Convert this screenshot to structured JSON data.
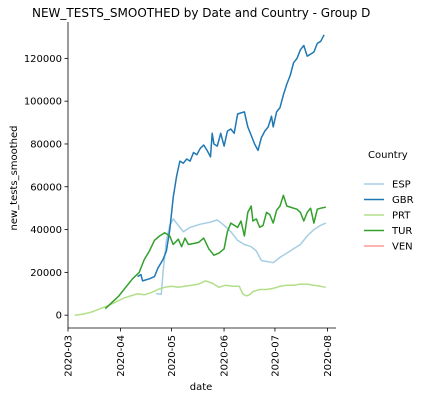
{
  "chart_data": {
    "type": "line",
    "title": "NEW_TESTS_SMOOTHED by Date and Country - Group D",
    "xlabel": "date",
    "ylabel": "new_tests_smoothed",
    "xlim": [
      "2020-03-01",
      "2020-08-06"
    ],
    "ylim": [
      -6000,
      137000
    ],
    "x_ticks": [
      "2020-03",
      "2020-04",
      "2020-05",
      "2020-06",
      "2020-07",
      "2020-08"
    ],
    "y_ticks": [
      0,
      20000,
      40000,
      60000,
      80000,
      100000,
      120000
    ],
    "y_tick_labels": [
      "0",
      "20000",
      "40000",
      "60000",
      "80000",
      "100000",
      "120000"
    ],
    "grid": false,
    "legend_title": "Country",
    "legend_position": "right",
    "series": [
      {
        "name": "ESP",
        "color": "#a6cee3",
        "points": [
          [
            "2020-04-22",
            10000
          ],
          [
            "2020-04-25",
            9800
          ],
          [
            "2020-04-26",
            20000
          ],
          [
            "2020-04-28",
            35000
          ],
          [
            "2020-04-30",
            42000
          ],
          [
            "2020-05-02",
            45000
          ],
          [
            "2020-05-06",
            41000
          ],
          [
            "2020-05-08",
            39000
          ],
          [
            "2020-05-12",
            41000
          ],
          [
            "2020-05-18",
            42500
          ],
          [
            "2020-05-24",
            43500
          ],
          [
            "2020-05-28",
            44500
          ],
          [
            "2020-06-01",
            42000
          ],
          [
            "2020-06-05",
            39000
          ],
          [
            "2020-06-09",
            35000
          ],
          [
            "2020-06-13",
            33000
          ],
          [
            "2020-06-17",
            32000
          ],
          [
            "2020-06-20",
            30000
          ],
          [
            "2020-06-23",
            25500
          ],
          [
            "2020-06-27",
            25000
          ],
          [
            "2020-06-30",
            24500
          ],
          [
            "2020-07-04",
            27000
          ],
          [
            "2020-07-08",
            29000
          ],
          [
            "2020-07-12",
            31000
          ],
          [
            "2020-07-16",
            33000
          ],
          [
            "2020-07-20",
            37000
          ],
          [
            "2020-07-24",
            40000
          ],
          [
            "2020-07-28",
            42000
          ],
          [
            "2020-07-31",
            43000
          ]
        ]
      },
      {
        "name": "GBR",
        "color": "#1f78b4",
        "points": [
          [
            "2020-04-11",
            18000
          ],
          [
            "2020-04-13",
            19000
          ],
          [
            "2020-04-14",
            16000
          ],
          [
            "2020-04-18",
            17000
          ],
          [
            "2020-04-21",
            18000
          ],
          [
            "2020-04-23",
            22000
          ],
          [
            "2020-04-26",
            26000
          ],
          [
            "2020-04-28",
            30000
          ],
          [
            "2020-04-30",
            40000
          ],
          [
            "2020-05-02",
            55000
          ],
          [
            "2020-05-04",
            65000
          ],
          [
            "2020-05-06",
            72000
          ],
          [
            "2020-05-08",
            71000
          ],
          [
            "2020-05-10",
            73000
          ],
          [
            "2020-05-12",
            72000
          ],
          [
            "2020-05-14",
            76000
          ],
          [
            "2020-05-16",
            75000
          ],
          [
            "2020-05-18",
            78000
          ],
          [
            "2020-05-20",
            79500
          ],
          [
            "2020-05-22",
            77000
          ],
          [
            "2020-05-24",
            74000
          ],
          [
            "2020-05-25",
            85000
          ],
          [
            "2020-05-26",
            80000
          ],
          [
            "2020-05-28",
            79000
          ],
          [
            "2020-05-30",
            85000
          ],
          [
            "2020-06-01",
            79000
          ],
          [
            "2020-06-03",
            86000
          ],
          [
            "2020-06-05",
            87000
          ],
          [
            "2020-06-07",
            85000
          ],
          [
            "2020-06-09",
            94000
          ],
          [
            "2020-06-11",
            94500
          ],
          [
            "2020-06-13",
            95000
          ],
          [
            "2020-06-15",
            88000
          ],
          [
            "2020-06-17",
            84000
          ],
          [
            "2020-06-19",
            80000
          ],
          [
            "2020-06-21",
            77000
          ],
          [
            "2020-06-23",
            83000
          ],
          [
            "2020-06-25",
            86000
          ],
          [
            "2020-06-27",
            88000
          ],
          [
            "2020-06-29",
            93000
          ],
          [
            "2020-06-30",
            88000
          ],
          [
            "2020-07-02",
            95000
          ],
          [
            "2020-07-04",
            97000
          ],
          [
            "2020-07-06",
            103000
          ],
          [
            "2020-07-08",
            108000
          ],
          [
            "2020-07-10",
            112000
          ],
          [
            "2020-07-12",
            118000
          ],
          [
            "2020-07-14",
            120000
          ],
          [
            "2020-07-16",
            124000
          ],
          [
            "2020-07-18",
            126000
          ],
          [
            "2020-07-20",
            121000
          ],
          [
            "2020-07-22",
            122000
          ],
          [
            "2020-07-24",
            123000
          ],
          [
            "2020-07-26",
            127000
          ],
          [
            "2020-07-28",
            128000
          ],
          [
            "2020-07-30",
            131000
          ]
        ]
      },
      {
        "name": "PRT",
        "color": "#b2df8a",
        "points": [
          [
            "2020-03-05",
            0
          ],
          [
            "2020-03-10",
            500
          ],
          [
            "2020-03-15",
            1500
          ],
          [
            "2020-03-20",
            3000
          ],
          [
            "2020-03-25",
            4500
          ],
          [
            "2020-03-30",
            6500
          ],
          [
            "2020-04-03",
            8000
          ],
          [
            "2020-04-07",
            9000
          ],
          [
            "2020-04-11",
            10000
          ],
          [
            "2020-04-15",
            9500
          ],
          [
            "2020-04-19",
            10500
          ],
          [
            "2020-04-23",
            12000
          ],
          [
            "2020-04-27",
            13000
          ],
          [
            "2020-05-01",
            13500
          ],
          [
            "2020-05-05",
            13000
          ],
          [
            "2020-05-09",
            13500
          ],
          [
            "2020-05-13",
            14000
          ],
          [
            "2020-05-17",
            14500
          ],
          [
            "2020-05-21",
            16000
          ],
          [
            "2020-05-25",
            15000
          ],
          [
            "2020-05-29",
            13000
          ],
          [
            "2020-06-02",
            14000
          ],
          [
            "2020-06-06",
            13500
          ],
          [
            "2020-06-10",
            13500
          ],
          [
            "2020-06-12",
            10000
          ],
          [
            "2020-06-14",
            9000
          ],
          [
            "2020-06-16",
            9500
          ],
          [
            "2020-06-18",
            11000
          ],
          [
            "2020-06-22",
            12000
          ],
          [
            "2020-06-26",
            12000
          ],
          [
            "2020-06-30",
            12500
          ],
          [
            "2020-07-04",
            13500
          ],
          [
            "2020-07-08",
            14000
          ],
          [
            "2020-07-12",
            14000
          ],
          [
            "2020-07-16",
            14500
          ],
          [
            "2020-07-20",
            14500
          ],
          [
            "2020-07-24",
            14000
          ],
          [
            "2020-07-28",
            13500
          ],
          [
            "2020-07-31",
            13000
          ]
        ]
      },
      {
        "name": "TUR",
        "color": "#33a02c",
        "points": [
          [
            "2020-03-23",
            3000
          ],
          [
            "2020-03-27",
            6000
          ],
          [
            "2020-03-31",
            9000
          ],
          [
            "2020-04-04",
            13000
          ],
          [
            "2020-04-08",
            17000
          ],
          [
            "2020-04-12",
            20000
          ],
          [
            "2020-04-15",
            26000
          ],
          [
            "2020-04-18",
            30000
          ],
          [
            "2020-04-21",
            35000
          ],
          [
            "2020-04-24",
            37000
          ],
          [
            "2020-04-27",
            38500
          ],
          [
            "2020-04-30",
            37000
          ],
          [
            "2020-05-02",
            33000
          ],
          [
            "2020-05-05",
            35500
          ],
          [
            "2020-05-07",
            32000
          ],
          [
            "2020-05-09",
            36000
          ],
          [
            "2020-05-11",
            33000
          ],
          [
            "2020-05-14",
            33500
          ],
          [
            "2020-05-17",
            34000
          ],
          [
            "2020-05-20",
            36000
          ],
          [
            "2020-05-23",
            31000
          ],
          [
            "2020-05-26",
            28000
          ],
          [
            "2020-05-29",
            29000
          ],
          [
            "2020-06-01",
            31000
          ],
          [
            "2020-06-03",
            39000
          ],
          [
            "2020-06-05",
            43000
          ],
          [
            "2020-06-07",
            42000
          ],
          [
            "2020-06-09",
            41000
          ],
          [
            "2020-06-11",
            44000
          ],
          [
            "2020-06-13",
            37000
          ],
          [
            "2020-06-15",
            48000
          ],
          [
            "2020-06-17",
            51000
          ],
          [
            "2020-06-18",
            44000
          ],
          [
            "2020-06-20",
            45000
          ],
          [
            "2020-06-22",
            41000
          ],
          [
            "2020-06-24",
            42000
          ],
          [
            "2020-06-26",
            48000
          ],
          [
            "2020-06-28",
            47000
          ],
          [
            "2020-06-30",
            43000
          ],
          [
            "2020-07-02",
            49000
          ],
          [
            "2020-07-04",
            51000
          ],
          [
            "2020-07-06",
            56000
          ],
          [
            "2020-07-08",
            51000
          ],
          [
            "2020-07-10",
            50500
          ],
          [
            "2020-07-12",
            50000
          ],
          [
            "2020-07-14",
            49500
          ],
          [
            "2020-07-16",
            48000
          ],
          [
            "2020-07-18",
            44000
          ],
          [
            "2020-07-20",
            48000
          ],
          [
            "2020-07-22",
            50000
          ],
          [
            "2020-07-24",
            43000
          ],
          [
            "2020-07-26",
            49500
          ],
          [
            "2020-07-28",
            50000
          ],
          [
            "2020-07-31",
            50500
          ]
        ]
      },
      {
        "name": "VEN",
        "color": "#fb9a99",
        "points": []
      }
    ]
  }
}
